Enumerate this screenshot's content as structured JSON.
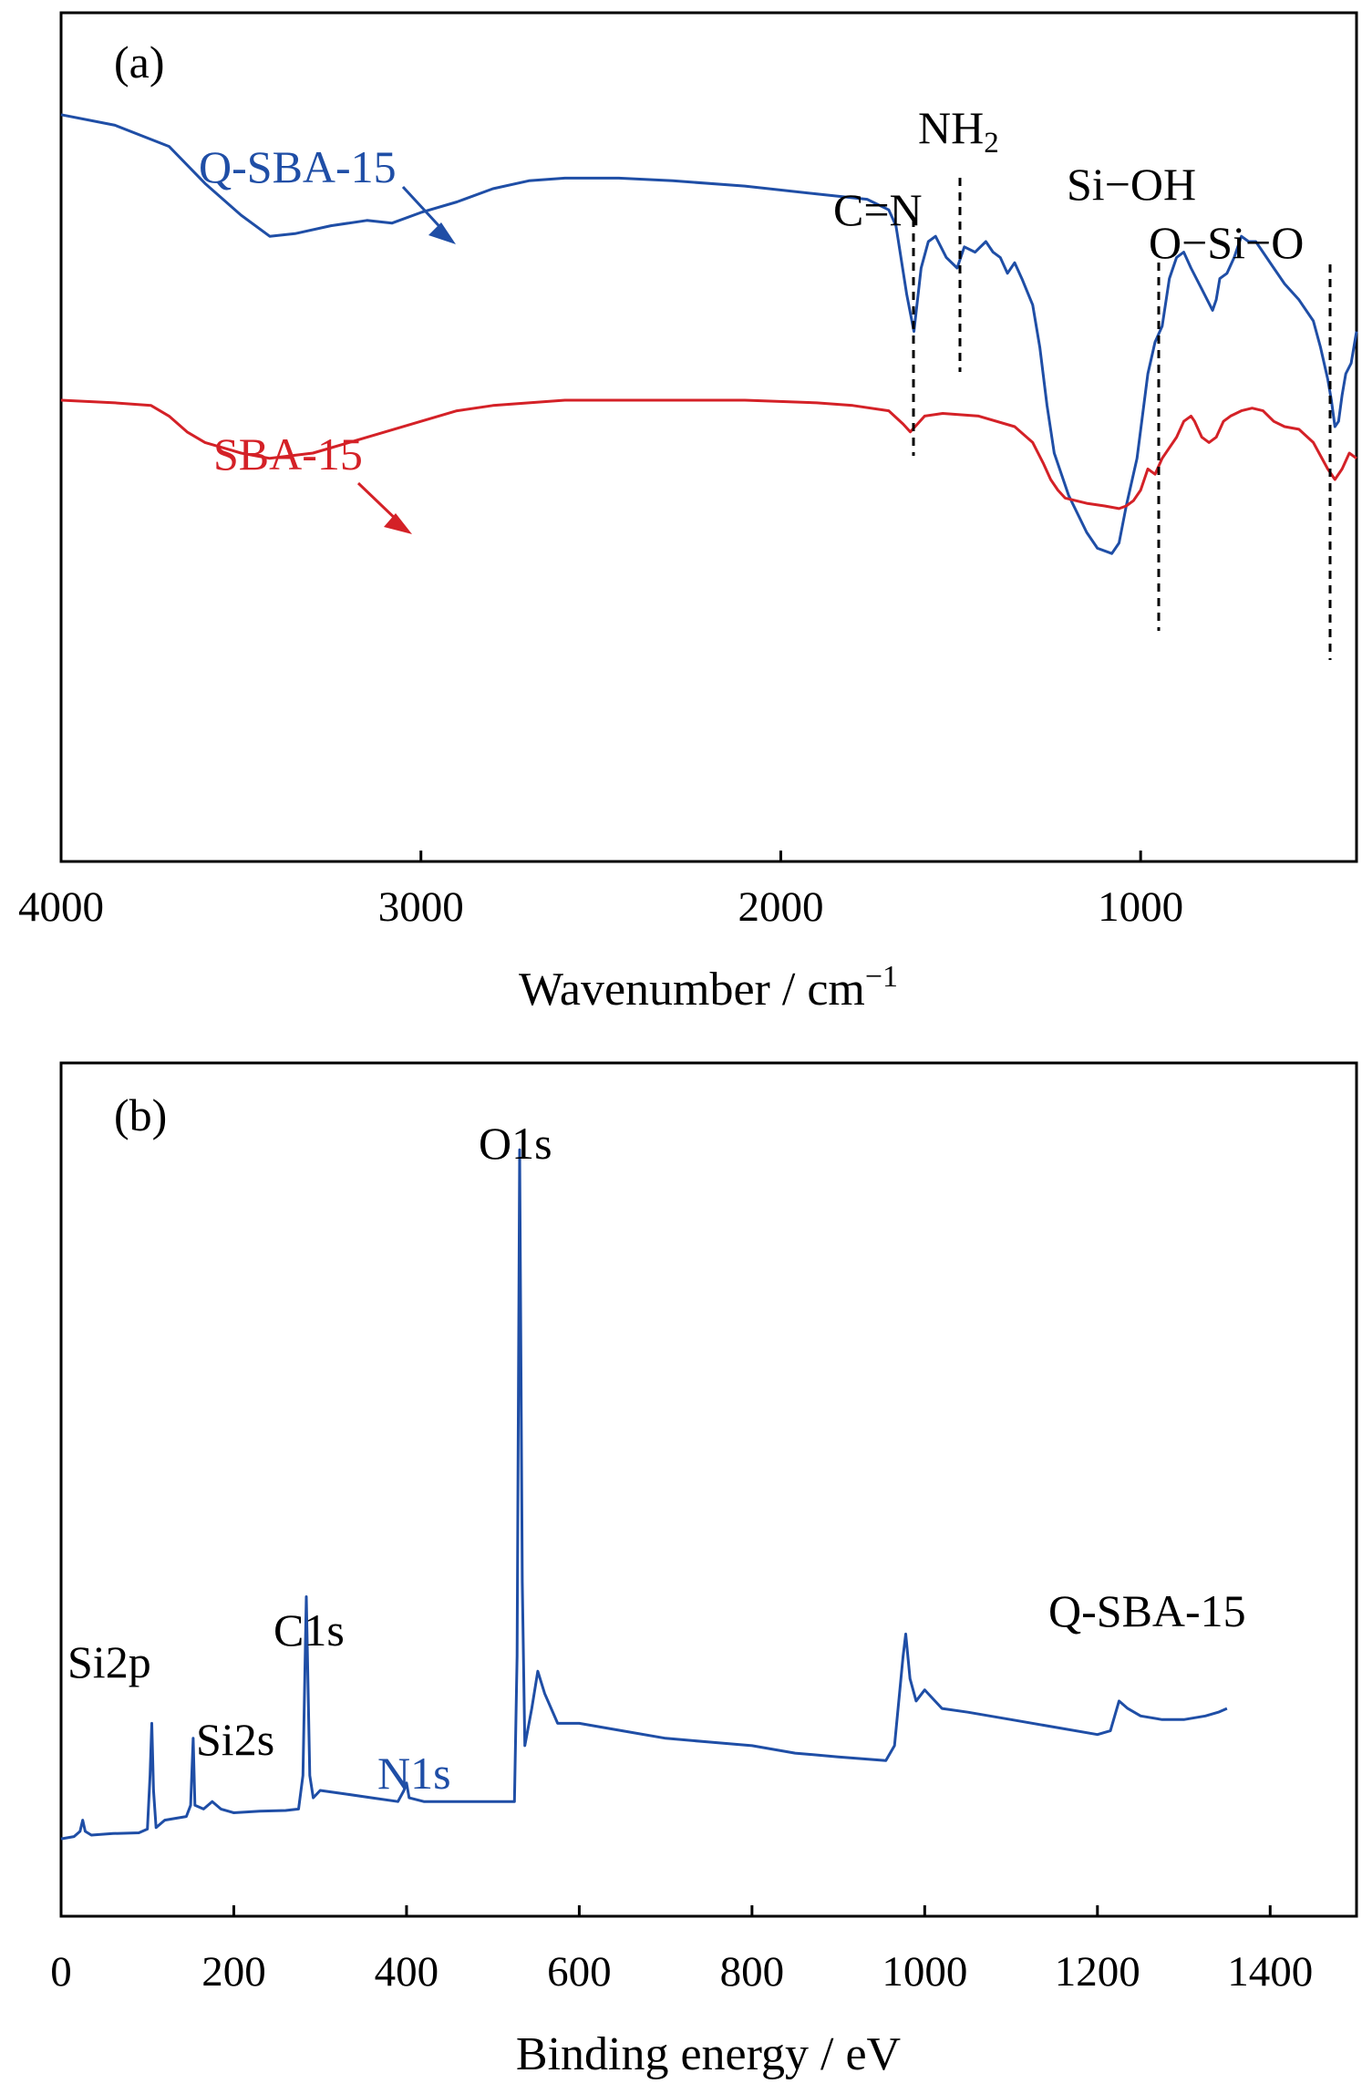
{
  "chart_data": [
    {
      "panel": "(a)",
      "type": "line",
      "xlabel": "Wavenumber / cm⁻¹",
      "ylabel": "",
      "xlim": [
        4000,
        400
      ],
      "x_reversed": true,
      "x_ticks": [
        4000,
        3000,
        2000,
        1000
      ],
      "y_units": "transmittance (arbitrary)",
      "ylim": [
        0,
        100
      ],
      "series": [
        {
          "name": "Q-SBA-15",
          "color": "#1f4ea6",
          "points": [
            [
              4000,
              99
            ],
            [
              3850,
              97
            ],
            [
              3700,
              93
            ],
            [
              3600,
              86
            ],
            [
              3500,
              80
            ],
            [
              3420,
              76
            ],
            [
              3350,
              76.5
            ],
            [
              3250,
              78
            ],
            [
              3150,
              79
            ],
            [
              3080,
              78.5
            ],
            [
              3000,
              80.5
            ],
            [
              2900,
              82.5
            ],
            [
              2800,
              85
            ],
            [
              2700,
              86.5
            ],
            [
              2600,
              87
            ],
            [
              2450,
              87
            ],
            [
              2300,
              86.5
            ],
            [
              2100,
              85.5
            ],
            [
              1900,
              84
            ],
            [
              1760,
              83
            ],
            [
              1700,
              81
            ],
            [
              1680,
              78
            ],
            [
              1650,
              65
            ],
            [
              1630,
              58
            ],
            [
              1610,
              70
            ],
            [
              1590,
              75
            ],
            [
              1570,
              76
            ],
            [
              1540,
              72
            ],
            [
              1510,
              70
            ],
            [
              1490,
              74
            ],
            [
              1460,
              73
            ],
            [
              1430,
              75
            ],
            [
              1410,
              73
            ],
            [
              1390,
              72
            ],
            [
              1370,
              69
            ],
            [
              1350,
              71
            ],
            [
              1330,
              68
            ],
            [
              1300,
              63
            ],
            [
              1280,
              55
            ],
            [
              1260,
              44
            ],
            [
              1240,
              35
            ],
            [
              1200,
              27
            ],
            [
              1150,
              20
            ],
            [
              1120,
              17
            ],
            [
              1080,
              16
            ],
            [
              1060,
              18
            ],
            [
              1040,
              25
            ],
            [
              1010,
              34
            ],
            [
              980,
              50
            ],
            [
              960,
              56
            ],
            [
              940,
              59
            ],
            [
              920,
              68
            ],
            [
              900,
              72
            ],
            [
              880,
              73
            ],
            [
              860,
              70
            ],
            [
              830,
              66
            ],
            [
              800,
              62
            ],
            [
              790,
              64
            ],
            [
              780,
              68
            ],
            [
              760,
              69
            ],
            [
              740,
              72
            ],
            [
              720,
              76
            ],
            [
              700,
              75
            ],
            [
              680,
              75
            ],
            [
              660,
              73
            ],
            [
              630,
              70
            ],
            [
              600,
              67
            ],
            [
              560,
              64
            ],
            [
              520,
              60
            ],
            [
              500,
              55
            ],
            [
              480,
              49
            ],
            [
              470,
              45
            ],
            [
              460,
              40
            ],
            [
              450,
              41
            ],
            [
              440,
              46
            ],
            [
              430,
              50
            ],
            [
              415,
              52
            ],
            [
              400,
              58
            ]
          ]
        },
        {
          "name": "SBA-15",
          "color": "#d42127",
          "points": [
            [
              4000,
              45
            ],
            [
              3850,
              44.5
            ],
            [
              3750,
              44
            ],
            [
              3700,
              42
            ],
            [
              3650,
              39
            ],
            [
              3600,
              37
            ],
            [
              3500,
              35
            ],
            [
              3420,
              34
            ],
            [
              3300,
              35
            ],
            [
              3200,
              37
            ],
            [
              3100,
              39
            ],
            [
              3000,
              41
            ],
            [
              2900,
              43
            ],
            [
              2800,
              44
            ],
            [
              2700,
              44.5
            ],
            [
              2600,
              45
            ],
            [
              2500,
              45
            ],
            [
              2300,
              45
            ],
            [
              2100,
              45
            ],
            [
              1900,
              44.5
            ],
            [
              1800,
              44
            ],
            [
              1700,
              43
            ],
            [
              1660,
              40.5
            ],
            [
              1640,
              39
            ],
            [
              1620,
              40.5
            ],
            [
              1600,
              42
            ],
            [
              1550,
              42.5
            ],
            [
              1450,
              42
            ],
            [
              1350,
              40
            ],
            [
              1300,
              37
            ],
            [
              1270,
              33
            ],
            [
              1250,
              30
            ],
            [
              1230,
              28
            ],
            [
              1210,
              26.5
            ],
            [
              1180,
              26
            ],
            [
              1150,
              25.5
            ],
            [
              1100,
              25
            ],
            [
              1060,
              24.5
            ],
            [
              1040,
              25
            ],
            [
              1020,
              26
            ],
            [
              1000,
              28
            ],
            [
              980,
              32
            ],
            [
              960,
              31
            ],
            [
              940,
              34
            ],
            [
              920,
              36
            ],
            [
              900,
              38
            ],
            [
              880,
              41
            ],
            [
              860,
              42
            ],
            [
              850,
              41
            ],
            [
              830,
              38
            ],
            [
              810,
              37
            ],
            [
              790,
              38
            ],
            [
              770,
              41
            ],
            [
              750,
              42
            ],
            [
              720,
              43
            ],
            [
              690,
              43.5
            ],
            [
              660,
              43
            ],
            [
              630,
              41
            ],
            [
              600,
              40
            ],
            [
              560,
              39.5
            ],
            [
              520,
              37
            ],
            [
              480,
              32
            ],
            [
              460,
              30
            ],
            [
              440,
              32
            ],
            [
              420,
              35
            ],
            [
              400,
              34
            ]
          ]
        }
      ],
      "annotations": [
        {
          "label": "C=N",
          "x": 1630
        },
        {
          "label": "NH2",
          "x": 1500
        },
        {
          "label": "Si−OH",
          "x": 950
        },
        {
          "label": "O−Si−O",
          "x": 460
        }
      ]
    },
    {
      "panel": "(b)",
      "type": "line",
      "xlabel": "Binding energy / eV",
      "ylabel": "",
      "xlim": [
        0,
        1500
      ],
      "x_ticks": [
        0,
        200,
        400,
        600,
        800,
        1000,
        1200,
        1400
      ],
      "y_units": "intensity (arbitrary)",
      "ylim": [
        0,
        100
      ],
      "series": [
        {
          "name": "Q-SBA-15",
          "color": "#1f4ea6",
          "points": [
            [
              0,
              5.5
            ],
            [
              15,
              5.8
            ],
            [
              22,
              6.5
            ],
            [
              25,
              8
            ],
            [
              28,
              6.5
            ],
            [
              35,
              6
            ],
            [
              60,
              6.2
            ],
            [
              90,
              6.3
            ],
            [
              100,
              6.8
            ],
            [
              103,
              14
            ],
            [
              105,
              21
            ],
            [
              107,
              12
            ],
            [
              110,
              7
            ],
            [
              120,
              8
            ],
            [
              130,
              8.2
            ],
            [
              145,
              8.5
            ],
            [
              150,
              10
            ],
            [
              153,
              19
            ],
            [
              155,
              10
            ],
            [
              165,
              9.5
            ],
            [
              175,
              10.5
            ],
            [
              185,
              9.5
            ],
            [
              200,
              9
            ],
            [
              230,
              9.2
            ],
            [
              260,
              9.3
            ],
            [
              275,
              9.5
            ],
            [
              280,
              14
            ],
            [
              284,
              38
            ],
            [
              288,
              14
            ],
            [
              292,
              11
            ],
            [
              300,
              12
            ],
            [
              330,
              11.5
            ],
            [
              360,
              11
            ],
            [
              390,
              10.5
            ],
            [
              397,
              12
            ],
            [
              400,
              13
            ],
            [
              403,
              11
            ],
            [
              420,
              10.5
            ],
            [
              460,
              10.5
            ],
            [
              500,
              10.5
            ],
            [
              525,
              10.5
            ],
            [
              528,
              30
            ],
            [
              531,
              98
            ],
            [
              534,
              40
            ],
            [
              537,
              18
            ],
            [
              545,
              23
            ],
            [
              552,
              28
            ],
            [
              560,
              25
            ],
            [
              575,
              21
            ],
            [
              600,
              21
            ],
            [
              650,
              20
            ],
            [
              700,
              19
            ],
            [
              750,
              18.5
            ],
            [
              800,
              18
            ],
            [
              850,
              17
            ],
            [
              900,
              16.5
            ],
            [
              955,
              16
            ],
            [
              965,
              18
            ],
            [
              975,
              30
            ],
            [
              978,
              33
            ],
            [
              983,
              27
            ],
            [
              990,
              24
            ],
            [
              1000,
              25.5
            ],
            [
              1020,
              23
            ],
            [
              1050,
              22.5
            ],
            [
              1100,
              21.5
            ],
            [
              1150,
              20.5
            ],
            [
              1200,
              19.5
            ],
            [
              1215,
              20
            ],
            [
              1225,
              24
            ],
            [
              1235,
              23
            ],
            [
              1250,
              22
            ],
            [
              1275,
              21.5
            ],
            [
              1300,
              21.5
            ],
            [
              1325,
              22
            ],
            [
              1340,
              22.5
            ],
            [
              1350,
              23
            ]
          ]
        }
      ],
      "annotations": [
        {
          "label": "Si2p",
          "x": 103
        },
        {
          "label": "Si2s",
          "x": 153
        },
        {
          "label": "C1s",
          "x": 285
        },
        {
          "label": "N1s",
          "x": 400
        },
        {
          "label": "O1s",
          "x": 531
        },
        {
          "label": "Q-SBA-15",
          "x": 1250
        }
      ]
    }
  ]
}
